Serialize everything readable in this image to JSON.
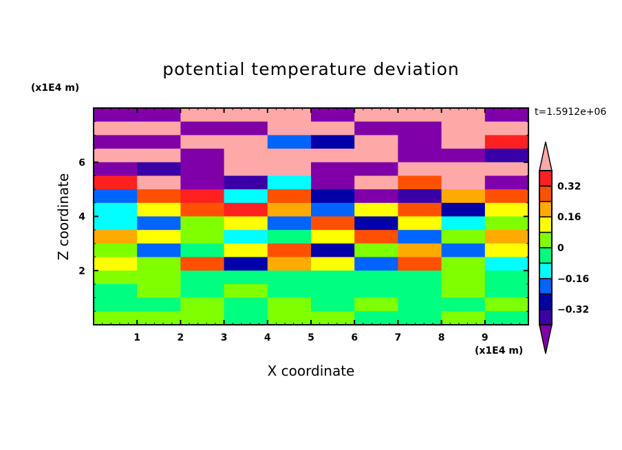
{
  "chart_data": {
    "type": "heatmap",
    "title": "potential temperature deviation",
    "xlabel": "X coordinate",
    "ylabel": "Z coordinate",
    "x_unit": "(x1E4 m)",
    "y_unit": "(x1E4 m)",
    "time_label": "t=1.5912e+06",
    "xlim": [
      0,
      10
    ],
    "ylim": [
      0,
      8
    ],
    "x_ticks": [
      "1",
      "2",
      "3",
      "4",
      "5",
      "6",
      "7",
      "8",
      "9"
    ],
    "y_ticks": [
      "2",
      "4",
      "6"
    ],
    "levels": [
      -0.4,
      -0.32,
      -0.24,
      -0.16,
      -0.08,
      0,
      0.08,
      0.16,
      0.24,
      0.32,
      0.4
    ],
    "colorbar_labels": [
      "0.32",
      "0.16",
      "0",
      "−0.16",
      "−0.32"
    ],
    "colorbar_label_values": [
      0.32,
      0.16,
      0,
      -0.16,
      -0.32
    ],
    "colors": [
      "#7f00a8",
      "#3a00a8",
      "#0000a8",
      "#0064ff",
      "#00ffff",
      "#00ff80",
      "#80ff00",
      "#ffff00",
      "#ffaa00",
      "#ff5000",
      "#ff2020",
      "#ffa8a8"
    ],
    "grid_note_rows_top_to_bottom": "z 8 to 0 in 0.5 steps, x 0 to 10 in 1 steps, values are color class index",
    "grid": [
      [
        0,
        0,
        11,
        11,
        11,
        0,
        11,
        11,
        11,
        0
      ],
      [
        11,
        11,
        0,
        0,
        11,
        11,
        0,
        0,
        11,
        11
      ],
      [
        0,
        0,
        11,
        11,
        3,
        2,
        11,
        0,
        11,
        10
      ],
      [
        11,
        11,
        0,
        11,
        11,
        11,
        11,
        0,
        0,
        1
      ],
      [
        0,
        1,
        0,
        11,
        11,
        0,
        0,
        11,
        11,
        11
      ],
      [
        10,
        11,
        0,
        1,
        4,
        0,
        11,
        9,
        11,
        0
      ],
      [
        3,
        9,
        10,
        4,
        9,
        2,
        0,
        1,
        8,
        9
      ],
      [
        4,
        7,
        9,
        10,
        8,
        3,
        7,
        9,
        2,
        7
      ],
      [
        4,
        3,
        6,
        7,
        3,
        9,
        2,
        7,
        4,
        6
      ],
      [
        8,
        7,
        6,
        4,
        5,
        7,
        9,
        3,
        6,
        8
      ],
      [
        6,
        3,
        5,
        7,
        9,
        2,
        6,
        8,
        3,
        7
      ],
      [
        7,
        6,
        9,
        2,
        8,
        7,
        3,
        9,
        6,
        4
      ],
      [
        6,
        6,
        5,
        5,
        5,
        5,
        5,
        5,
        6,
        5
      ],
      [
        5,
        6,
        5,
        6,
        5,
        5,
        5,
        5,
        6,
        5
      ],
      [
        5,
        5,
        6,
        5,
        6,
        5,
        6,
        5,
        5,
        6
      ],
      [
        6,
        6,
        6,
        5,
        6,
        6,
        5,
        5,
        6,
        5
      ]
    ]
  }
}
